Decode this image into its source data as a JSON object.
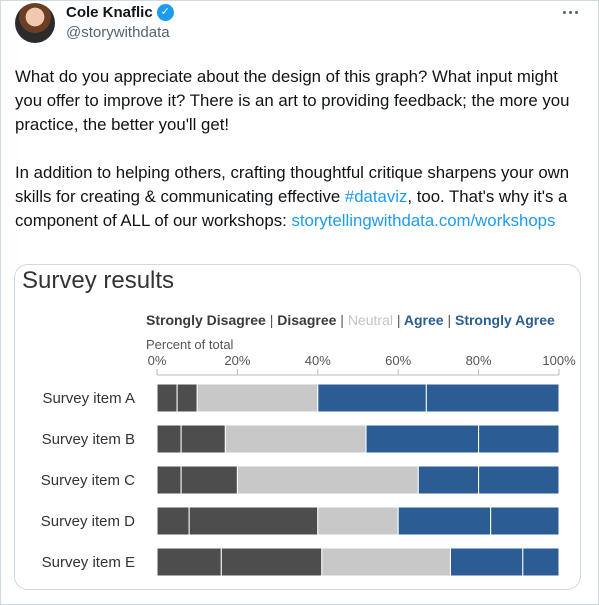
{
  "tweet": {
    "author_name": "Cole Knaflic",
    "handle": "@storywithdata",
    "para1": "What do you appreciate about the design of this graph? What input might you offer to improve it? There is an art to providing feedback; the more you practice, the better you'll get!",
    "para2_before": "In addition to helping others, crafting thoughtful critique sharpens your own skills for creating & communicating effective ",
    "hashtag": "#dataviz",
    "para2_after": ", too. That's why it's a component of ALL of our workshops: ",
    "link": "storytellingwithdata.com/workshops"
  },
  "icons": {
    "avatar": "author-avatar",
    "verified": "verified-badge-icon",
    "more": "more-options-icon"
  },
  "colors": {
    "strongly_disagree": "#4d4d4d",
    "disagree": "#4d4d4d",
    "neutral": "#c8c8c8",
    "agree": "#2b5d94",
    "strongly_agree": "#2b5d94",
    "link": "#1d9bf0"
  },
  "chart_data": {
    "type": "bar",
    "orientation": "horizontal-stacked",
    "title": "Survey results",
    "xlabel": "Percent of total",
    "xlim": [
      0,
      100
    ],
    "x_ticks": [
      "0%",
      "20%",
      "40%",
      "60%",
      "80%",
      "100%"
    ],
    "legend": [
      "Strongly Disagree",
      "Disagree",
      "Neutral",
      "Agree",
      "Strongly Agree"
    ],
    "legend_separator": "|",
    "legend_position": "top",
    "grid": false,
    "categories": [
      "Survey item A",
      "Survey item B",
      "Survey item C",
      "Survey item D",
      "Survey item E"
    ],
    "series": [
      {
        "name": "Strongly Disagree",
        "values": [
          5,
          6,
          6,
          8,
          16
        ]
      },
      {
        "name": "Disagree",
        "values": [
          5,
          11,
          14,
          32,
          25
        ]
      },
      {
        "name": "Neutral",
        "values": [
          30,
          35,
          45,
          20,
          32
        ]
      },
      {
        "name": "Agree",
        "values": [
          27,
          28,
          15,
          23,
          18
        ]
      },
      {
        "name": "Strongly Agree",
        "values": [
          33,
          20,
          20,
          17,
          9
        ]
      }
    ]
  }
}
